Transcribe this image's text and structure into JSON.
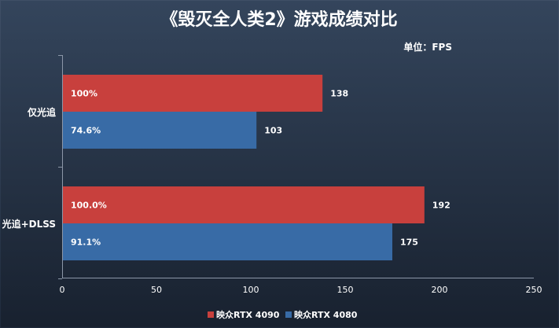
{
  "chart_data": {
    "type": "bar",
    "orientation": "horizontal",
    "title": "《毁灭全人类2》游戏成绩对比",
    "unit_label": "单位：FPS",
    "categories": [
      "仅光追",
      "光追+DLSS"
    ],
    "series": [
      {
        "name": "映众RTX 4090",
        "color": "#c8403d",
        "values": [
          138,
          192
        ],
        "labels": [
          "100%",
          "100.0%"
        ]
      },
      {
        "name": "映众RTX 4080",
        "color": "#386ba6",
        "values": [
          103,
          175
        ],
        "labels": [
          "74.6%",
          "91.1%"
        ]
      }
    ],
    "xlim": [
      0,
      250
    ],
    "xticks": [
      0,
      50,
      100,
      150,
      200,
      250
    ],
    "grid": false,
    "legend": "bottom"
  }
}
